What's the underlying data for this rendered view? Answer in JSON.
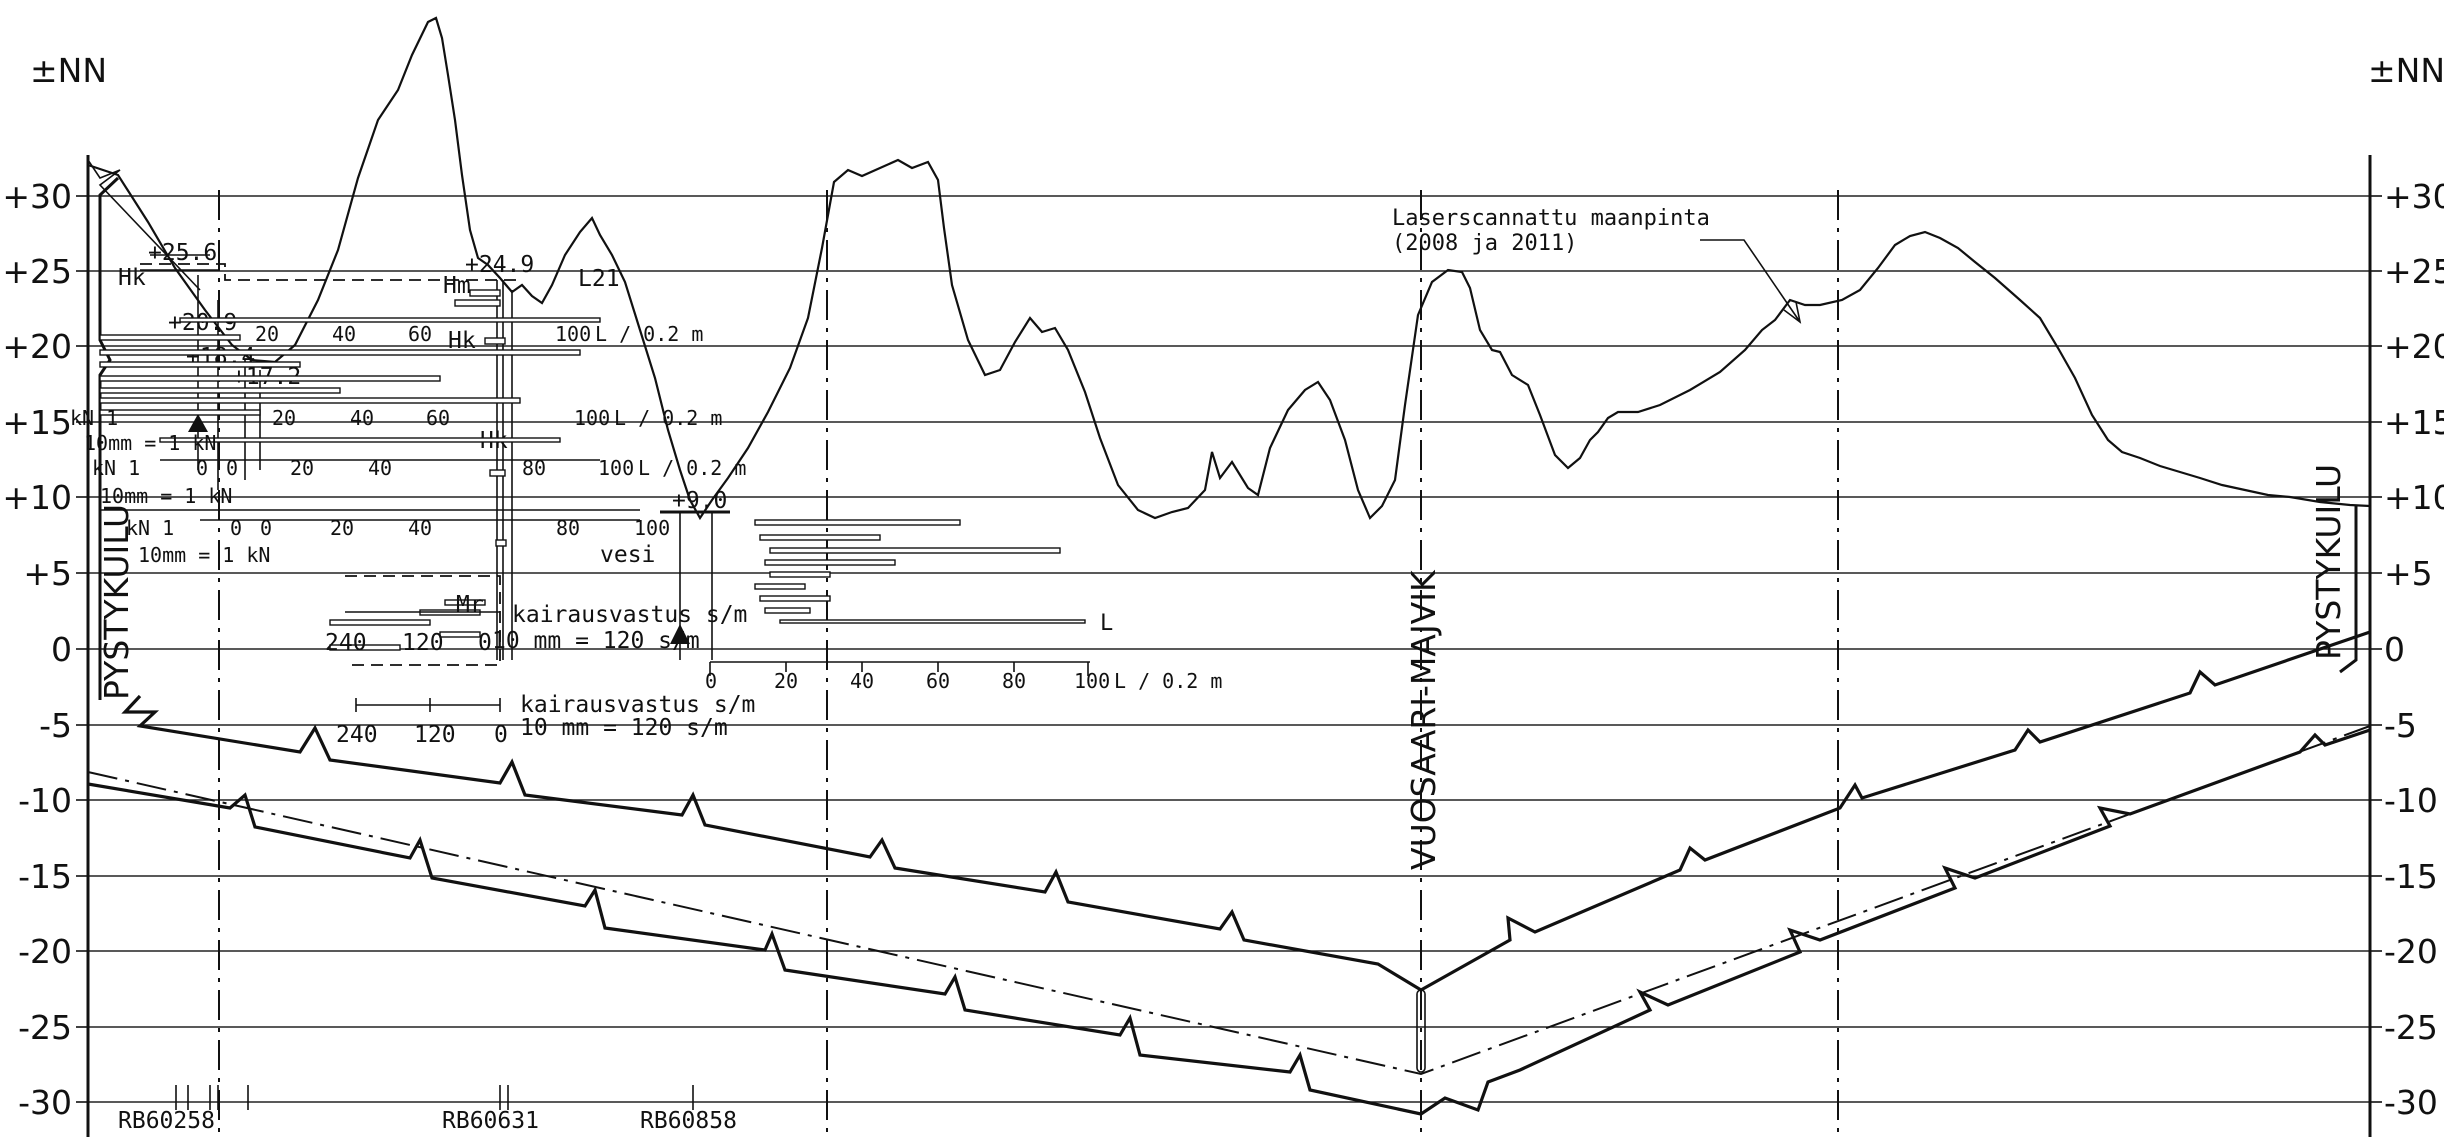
{
  "elevation_unit_label": "±NN",
  "elevation_levels": [
    "+30",
    "+25",
    "+20",
    "+15",
    "+10",
    "+5",
    "0",
    "-5",
    "-10",
    "-15",
    "-20",
    "-25",
    "-30"
  ],
  "ground_surface_note": {
    "line1": "Laserscannattu maanpinta",
    "line2": "(2008 ja 2011)"
  },
  "shaft_label": "PYSTYKUILU",
  "station_label": "VUOSAARI-MAJVIK",
  "boreholes": [
    {
      "id": "RB60258"
    },
    {
      "id": "RB60631"
    },
    {
      "id": "RB60858"
    }
  ],
  "borehole_annotations": {
    "elev_a": "+25.6",
    "elev_b": "+20.9",
    "elev_c": "+18.4",
    "elev_d": "+17.2",
    "elev_e": "+24.9",
    "elev_f": "+9.0",
    "hk": "Hk",
    "hm": "Hm",
    "mr": "Mr",
    "l21": "L21",
    "kn1": "kN 1",
    "kn_scale": "10mm = 1 kN",
    "l_scale": "L / 0.2 m",
    "water": "vesi",
    "drill_resistance": "kairausvastus s/m",
    "drill_scale": "10 mm = 120 s/m",
    "l_label": "L",
    "ticks_l": [
      "0",
      "20",
      "40",
      "60",
      "80",
      "100"
    ],
    "ticks_s": [
      "240",
      "120",
      "0"
    ]
  }
}
